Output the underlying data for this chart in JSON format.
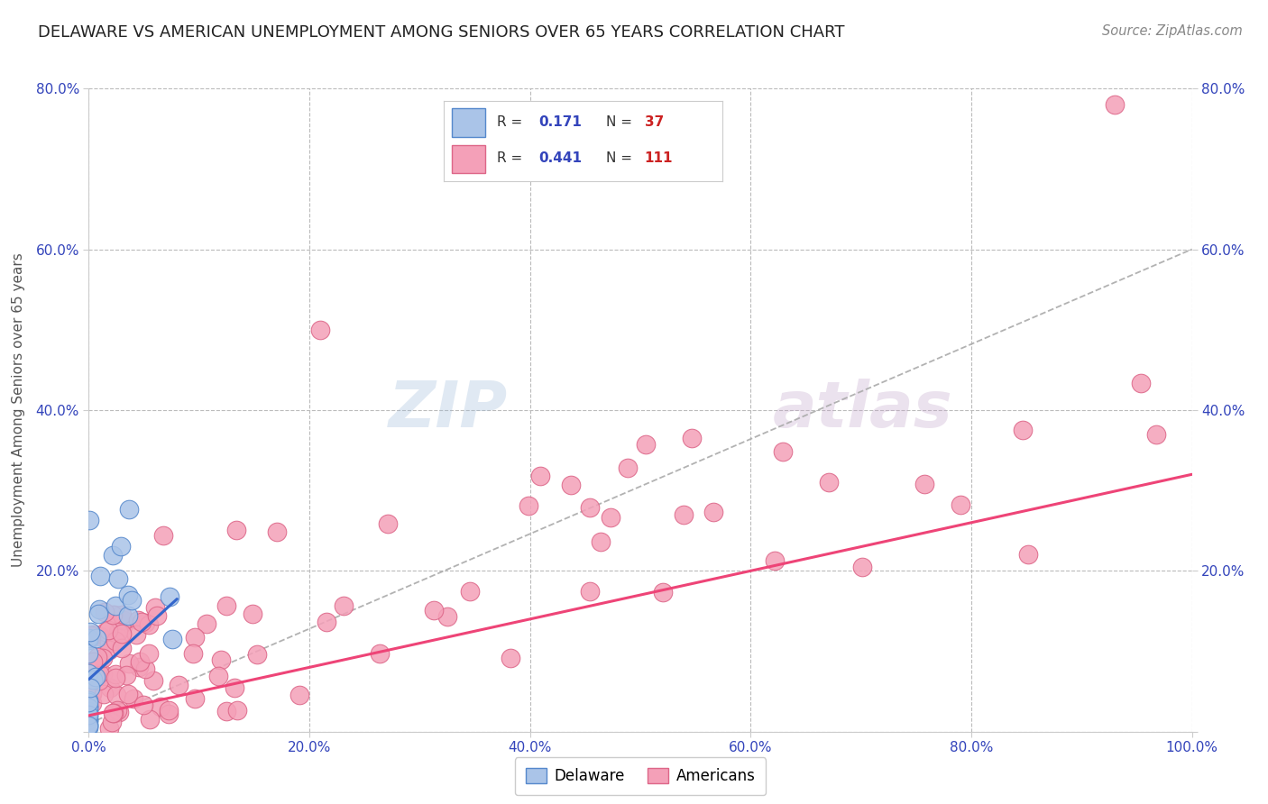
{
  "title": "DELAWARE VS AMERICAN UNEMPLOYMENT AMONG SENIORS OVER 65 YEARS CORRELATION CHART",
  "source": "Source: ZipAtlas.com",
  "ylabel": "Unemployment Among Seniors over 65 years",
  "xlim": [
    0,
    1.0
  ],
  "ylim": [
    0,
    0.8
  ],
  "xticks": [
    0.0,
    0.2,
    0.4,
    0.6,
    0.8,
    1.0
  ],
  "xticklabels": [
    "0.0%",
    "20.0%",
    "40.0%",
    "60.0%",
    "80.0%",
    "100.0%"
  ],
  "ytick_positions": [
    0.0,
    0.2,
    0.4,
    0.6,
    0.8
  ],
  "yticklabels_left": [
    "",
    "20.0%",
    "40.0%",
    "60.0%",
    "80.0%"
  ],
  "yticklabels_right": [
    "",
    "20.0%",
    "40.0%",
    "60.0%",
    "80.0%"
  ],
  "background_color": "#ffffff",
  "grid_color": "#bbbbbb",
  "delaware_color": "#aac4e8",
  "americans_color": "#f4a0b8",
  "delaware_edge": "#5588cc",
  "americans_edge": "#dd6688",
  "delaware_R": 0.171,
  "delaware_N": 37,
  "americans_R": 0.441,
  "americans_N": 111,
  "legend_color": "#3344bb",
  "regression_line_color": "#aaaaaa",
  "delaware_line_color": "#3366cc",
  "americans_line_color": "#ee4477",
  "watermark_zip_color": "#b8cce4",
  "watermark_atlas_color": "#c8a0c8"
}
